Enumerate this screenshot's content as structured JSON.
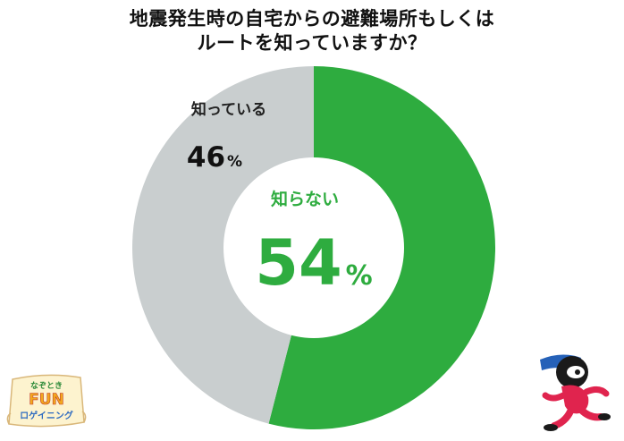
{
  "title_lines": [
    "地震発生時の自宅からの避難場所もしくは",
    "ルートを知っていますか？"
  ],
  "chart_data": {
    "type": "pie",
    "donut": true,
    "slices": [
      {
        "label": "知らない",
        "value": 54,
        "unit": "%",
        "color": "#2eac3f"
      },
      {
        "label": "知っている",
        "value": 46,
        "unit": "%",
        "color": "#c9cecf"
      }
    ]
  },
  "logo": {
    "line1": "なぞとき",
    "line2": "FUN",
    "line3": "ロゲイニング"
  },
  "colors": {
    "green": "#2eac3f",
    "gray": "#c9cecf",
    "mascot_red": "#e0244e",
    "mascot_blue": "#2561b8"
  }
}
